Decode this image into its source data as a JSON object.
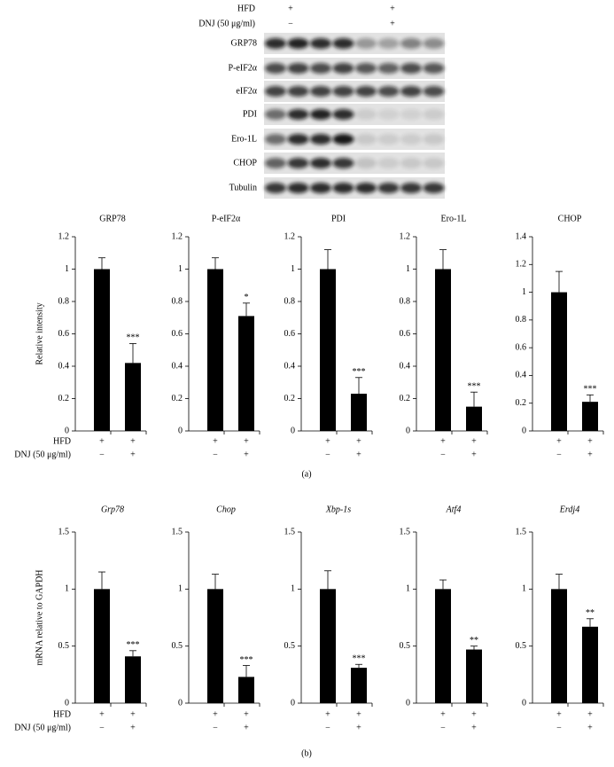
{
  "conditions": {
    "hfd_label": "HFD",
    "dnj_label": "DNJ (50 μg/ml)"
  },
  "blot": {
    "hfd": [
      "+",
      "+"
    ],
    "dnj": [
      "−",
      "+"
    ],
    "proteins": [
      "GRP78",
      "P-eIF2α",
      "eIF2α",
      "PDI",
      "Ero-1L",
      "CHOP",
      "Tubulin"
    ]
  },
  "panel_labels": [
    "(a)",
    "(b)"
  ],
  "chart_data": [
    {
      "type": "bar",
      "title": "GRP78",
      "y_label": "Relative intensity",
      "italic": false,
      "hfd": [
        "+",
        "+"
      ],
      "dnj": [
        "−",
        "+"
      ],
      "values": [
        1,
        0.42
      ],
      "errors": [
        0.07,
        0.12
      ],
      "significance": [
        null,
        "***"
      ],
      "ylim": [
        0,
        1.2
      ],
      "yticks": [
        0,
        0.2,
        0.4,
        0.6,
        0.8,
        1,
        1.2
      ],
      "color": "#000000"
    },
    {
      "type": "bar",
      "title": "P-eIF2α",
      "italic": false,
      "hfd": [
        "+",
        "+"
      ],
      "dnj": [
        "−",
        "+"
      ],
      "values": [
        1,
        0.71
      ],
      "errors": [
        0.07,
        0.08
      ],
      "significance": [
        null,
        "*"
      ],
      "ylim": [
        0,
        1.2
      ],
      "yticks": [
        0,
        0.2,
        0.4,
        0.6,
        0.8,
        1,
        1.2
      ],
      "color": "#000000"
    },
    {
      "type": "bar",
      "title": "PDI",
      "italic": false,
      "hfd": [
        "+",
        "+"
      ],
      "dnj": [
        "−",
        "+"
      ],
      "values": [
        1,
        0.23
      ],
      "errors": [
        0.12,
        0.1
      ],
      "significance": [
        null,
        "***"
      ],
      "ylim": [
        0,
        1.2
      ],
      "yticks": [
        0,
        0.2,
        0.4,
        0.6,
        0.8,
        1,
        1.2
      ],
      "color": "#000000"
    },
    {
      "type": "bar",
      "title": "Ero-1L",
      "italic": false,
      "hfd": [
        "+",
        "+"
      ],
      "dnj": [
        "−",
        "+"
      ],
      "values": [
        1,
        0.15
      ],
      "errors": [
        0.12,
        0.09
      ],
      "significance": [
        null,
        "***"
      ],
      "ylim": [
        0,
        1.2
      ],
      "yticks": [
        0,
        0.2,
        0.4,
        0.6,
        0.8,
        1,
        1.2
      ],
      "color": "#000000"
    },
    {
      "type": "bar",
      "title": "CHOP",
      "italic": false,
      "hfd": [
        "+",
        "+"
      ],
      "dnj": [
        "−",
        "+"
      ],
      "values": [
        1,
        0.21
      ],
      "errors": [
        0.15,
        0.05
      ],
      "significance": [
        null,
        "***"
      ],
      "ylim": [
        0,
        1.4
      ],
      "yticks": [
        0,
        0.2,
        0.4,
        0.6,
        0.8,
        1,
        1.2,
        1.4
      ],
      "color": "#000000"
    },
    {
      "type": "bar",
      "title": "Grp78",
      "y_label": "mRNA relative to GAPDH",
      "italic": true,
      "hfd": [
        "+",
        "+"
      ],
      "dnj": [
        "−",
        "+"
      ],
      "values": [
        1,
        0.41
      ],
      "errors": [
        0.15,
        0.05
      ],
      "significance": [
        null,
        "***"
      ],
      "ylim": [
        0,
        1.5
      ],
      "yticks": [
        0,
        0.5,
        1,
        1.5
      ],
      "color": "#000000"
    },
    {
      "type": "bar",
      "title": "Chop",
      "italic": true,
      "hfd": [
        "+",
        "+"
      ],
      "dnj": [
        "−",
        "+"
      ],
      "values": [
        1,
        0.23
      ],
      "errors": [
        0.13,
        0.1
      ],
      "significance": [
        null,
        "***"
      ],
      "ylim": [
        0,
        1.5
      ],
      "yticks": [
        0,
        0.5,
        1,
        1.5
      ],
      "color": "#000000"
    },
    {
      "type": "bar",
      "title": "Xbp-1s",
      "italic": true,
      "hfd": [
        "+",
        "+"
      ],
      "dnj": [
        "−",
        "+"
      ],
      "values": [
        1,
        0.31
      ],
      "errors": [
        0.16,
        0.03
      ],
      "significance": [
        null,
        "***"
      ],
      "ylim": [
        0,
        1.5
      ],
      "yticks": [
        0,
        0.5,
        1,
        1.5
      ],
      "color": "#000000"
    },
    {
      "type": "bar",
      "title": "Atf4",
      "italic": true,
      "hfd": [
        "+",
        "+"
      ],
      "dnj": [
        "−",
        "+"
      ],
      "values": [
        1,
        0.47
      ],
      "errors": [
        0.08,
        0.03
      ],
      "significance": [
        null,
        "**"
      ],
      "ylim": [
        0,
        1.5
      ],
      "yticks": [
        0,
        0.5,
        1,
        1.5
      ],
      "color": "#000000"
    },
    {
      "type": "bar",
      "title": "Erdj4",
      "italic": true,
      "hfd": [
        "+",
        "+"
      ],
      "dnj": [
        "−",
        "+"
      ],
      "values": [
        1,
        0.67
      ],
      "errors": [
        0.13,
        0.07
      ],
      "significance": [
        null,
        "**"
      ],
      "ylim": [
        0,
        1.5
      ],
      "yticks": [
        0,
        0.5,
        1,
        1.5
      ],
      "color": "#000000"
    }
  ]
}
